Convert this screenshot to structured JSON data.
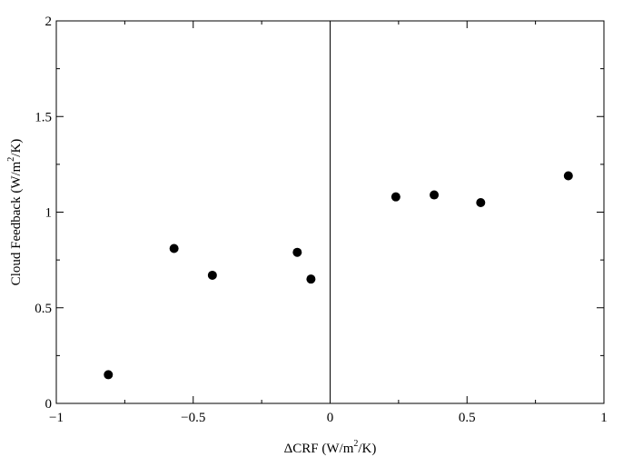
{
  "chart_data": {
    "type": "scatter",
    "title": "",
    "xlabel": {
      "pre": "ΔCRF  (W/m",
      "sup": "2",
      "post": "/K)"
    },
    "ylabel": {
      "pre": "Cloud Feedback  (W/m",
      "sup": "2",
      "post": "/K)"
    },
    "xlim": [
      -1,
      1
    ],
    "ylim": [
      0,
      2
    ],
    "x_ticks": [
      -1,
      -0.5,
      0,
      0.5,
      1
    ],
    "x_tick_labels": [
      "−1",
      "−0.5",
      "0",
      "0.5",
      "1"
    ],
    "y_ticks": [
      0,
      0.5,
      1,
      1.5,
      2
    ],
    "y_tick_labels": [
      "0",
      "0.5",
      "1",
      "1.5",
      "2"
    ],
    "reference_line_x": 0,
    "grid": false,
    "marker_color": "#000000",
    "points": [
      {
        "x": -0.81,
        "y": 0.15
      },
      {
        "x": -0.57,
        "y": 0.81
      },
      {
        "x": -0.43,
        "y": 0.67
      },
      {
        "x": -0.12,
        "y": 0.79
      },
      {
        "x": -0.07,
        "y": 0.65
      },
      {
        "x": 0.24,
        "y": 1.08
      },
      {
        "x": 0.38,
        "y": 1.09
      },
      {
        "x": 0.55,
        "y": 1.05
      },
      {
        "x": 0.87,
        "y": 1.19
      }
    ]
  }
}
